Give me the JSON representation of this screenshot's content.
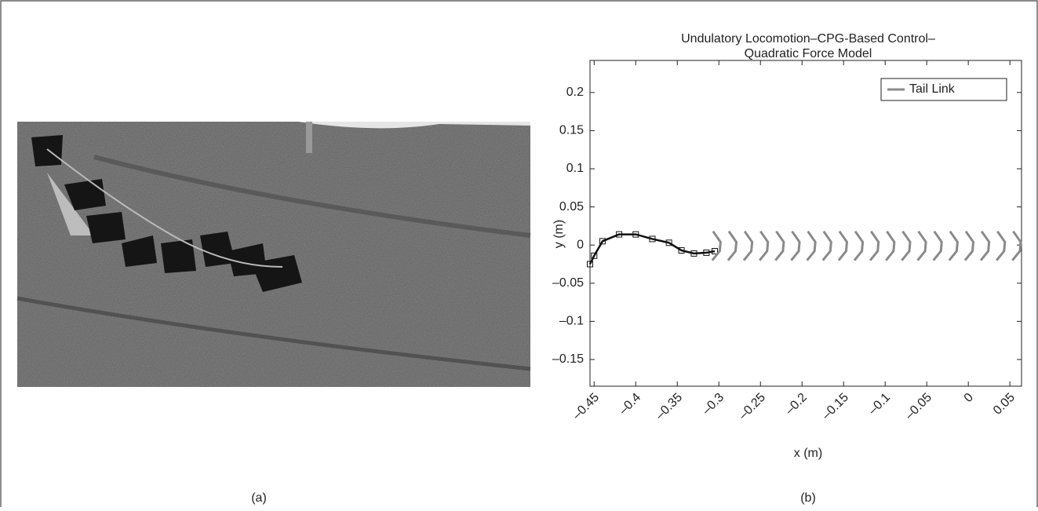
{
  "figure": {
    "captions": [
      "(a)",
      "(b)"
    ]
  },
  "chart_data": {
    "type": "line",
    "title": [
      "Undulatory Locomotion–CPG-Based Control–",
      "Quadratic Force Model"
    ],
    "x_label": "x (m)",
    "y_label": "y (m)",
    "xlim": [
      -0.455,
      0.064
    ],
    "ylim": [
      -0.185,
      0.242
    ],
    "xticks": [
      {
        "value": -0.45,
        "label": "–0.45"
      },
      {
        "value": -0.4,
        "label": "–0.4"
      },
      {
        "value": -0.35,
        "label": "–0.35"
      },
      {
        "value": -0.3,
        "label": "–0.3"
      },
      {
        "value": -0.25,
        "label": "–0.25"
      },
      {
        "value": -0.2,
        "label": "–0.2"
      },
      {
        "value": -0.15,
        "label": "–0.15"
      },
      {
        "value": -0.1,
        "label": "–0.1"
      },
      {
        "value": -0.05,
        "label": "–0.05"
      },
      0,
      0.05
    ],
    "yticks": [
      0.2,
      0.15,
      0.1,
      0.05,
      0,
      {
        "value": -0.05,
        "label": "–0.05"
      },
      {
        "value": -0.1,
        "label": "–0.1"
      },
      {
        "value": -0.15,
        "label": "–0.15"
      }
    ],
    "legend": "upper right",
    "series": [
      {
        "color": "#111111",
        "marker": "square",
        "x": [
          -0.455,
          -0.45,
          -0.44,
          -0.42,
          -0.4,
          -0.38,
          -0.36,
          -0.345,
          -0.33,
          -0.315,
          -0.305
        ],
        "values": [
          -0.025,
          -0.014,
          0.005,
          0.014,
          0.014,
          0.008,
          0.003,
          -0.007,
          -0.011,
          -0.01,
          -0.008
        ]
      },
      {
        "name": "Tail Link",
        "color": "#8a8a8a",
        "x": [
          -0.307,
          -0.298,
          -0.299,
          -0.308,
          null,
          -0.288,
          -0.279,
          -0.28,
          -0.289,
          null,
          -0.269,
          -0.26,
          -0.261,
          -0.27,
          null,
          -0.25,
          -0.241,
          -0.242,
          -0.251,
          null,
          -0.231,
          -0.222,
          -0.223,
          -0.232,
          null,
          -0.212,
          -0.203,
          -0.204,
          -0.213,
          null,
          -0.193,
          -0.184,
          -0.185,
          -0.194,
          null,
          -0.174,
          -0.165,
          -0.166,
          -0.175,
          null,
          -0.155,
          -0.146,
          -0.147,
          -0.156,
          null,
          -0.136,
          -0.127,
          -0.128,
          -0.137,
          null,
          -0.117,
          -0.108,
          -0.109,
          -0.118,
          null,
          -0.098,
          -0.089,
          -0.09,
          -0.099,
          null,
          -0.079,
          -0.07,
          -0.071,
          -0.08,
          null,
          -0.06,
          -0.051,
          -0.052,
          -0.061,
          null,
          -0.041,
          -0.032,
          -0.033,
          -0.042,
          null,
          -0.022,
          -0.013,
          -0.014,
          -0.023,
          null,
          -0.003,
          0.006,
          0.005,
          -0.004,
          null,
          0.016,
          0.025,
          0.024,
          0.015,
          null,
          0.035,
          0.044,
          0.043,
          0.034,
          null,
          0.054,
          0.063,
          0.062,
          0.053
        ],
        "values": [
          0.018,
          0.004,
          -0.008,
          -0.02,
          null,
          0.018,
          0.004,
          -0.008,
          -0.02,
          null,
          0.018,
          0.004,
          -0.008,
          -0.02,
          null,
          0.018,
          0.004,
          -0.008,
          -0.02,
          null,
          0.018,
          0.004,
          -0.008,
          -0.02,
          null,
          0.018,
          0.004,
          -0.008,
          -0.02,
          null,
          0.018,
          0.004,
          -0.008,
          -0.02,
          null,
          0.018,
          0.004,
          -0.008,
          -0.02,
          null,
          0.018,
          0.004,
          -0.008,
          -0.02,
          null,
          0.018,
          0.004,
          -0.008,
          -0.02,
          null,
          0.018,
          0.004,
          -0.008,
          -0.02,
          null,
          0.018,
          0.004,
          -0.008,
          -0.02,
          null,
          0.018,
          0.004,
          -0.008,
          -0.02,
          null,
          0.018,
          0.004,
          -0.008,
          -0.02,
          null,
          0.018,
          0.004,
          -0.008,
          -0.02,
          null,
          0.018,
          0.004,
          -0.008,
          -0.02,
          null,
          0.018,
          0.004,
          -0.008,
          -0.02,
          null,
          0.018,
          0.004,
          -0.008,
          -0.02,
          null,
          0.018,
          0.004,
          -0.008,
          -0.02,
          null,
          0.018,
          0.004,
          -0.008,
          -0.02
        ]
      }
    ]
  }
}
